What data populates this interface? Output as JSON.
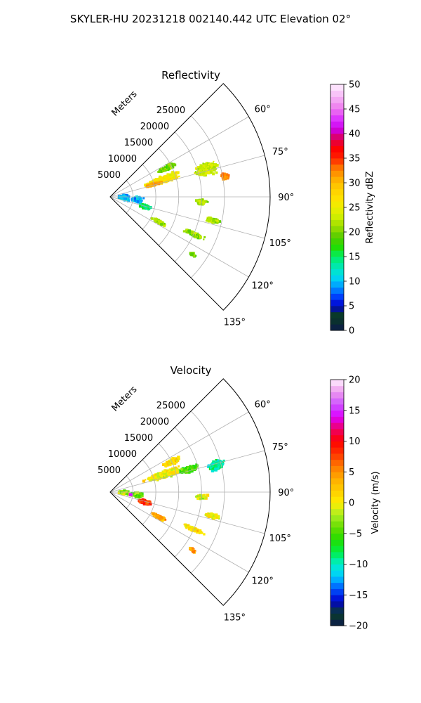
{
  "figure_title": "SKYLER-HU  20231218  002140.442 UTC Elevation 02°",
  "colors": {
    "grid": "#b0b0b0",
    "axis": "#000000"
  },
  "chart_data": [
    {
      "type": "heatmap",
      "subtype": "polar-sector-ppi",
      "title": "Reflectivity",
      "radial_axis_label": "Meters",
      "radial_ticks": [
        5000,
        10000,
        15000,
        20000,
        25000
      ],
      "radial_tick_labels": [
        "5000",
        "10000",
        "15000",
        "20000",
        "25000"
      ],
      "r_range": [
        0,
        35000
      ],
      "azimuth_range_deg": [
        45,
        135
      ],
      "azimuth_ticks_deg": [
        60,
        75,
        90,
        105,
        120,
        135
      ],
      "azimuth_tick_labels": [
        "60°",
        "75°",
        "90°",
        "105°",
        "120°",
        "135°"
      ],
      "grid": true,
      "colorbar": {
        "label": "Reflectivity dBZ",
        "range": [
          0,
          50
        ],
        "ticks": [
          0,
          5,
          10,
          15,
          20,
          25,
          30,
          35,
          40,
          45,
          50
        ],
        "tick_labels": [
          "0",
          "5",
          "10",
          "15",
          "20",
          "25",
          "30",
          "35",
          "40",
          "45",
          "50"
        ],
        "stops": [
          [
            0,
            "#0b1a4a"
          ],
          [
            3,
            "#0a3d1f"
          ],
          [
            5,
            "#0000cc"
          ],
          [
            7,
            "#0044ff"
          ],
          [
            9,
            "#00a0ff"
          ],
          [
            11,
            "#00ddee"
          ],
          [
            13,
            "#00e8b0"
          ],
          [
            15,
            "#00ee66"
          ],
          [
            17,
            "#22dd00"
          ],
          [
            19,
            "#55cc00"
          ],
          [
            21,
            "#99dd00"
          ],
          [
            23,
            "#ccee00"
          ],
          [
            25,
            "#eeee00"
          ],
          [
            27,
            "#ffe000"
          ],
          [
            29,
            "#ffcc00"
          ],
          [
            31,
            "#ffaa00"
          ],
          [
            33,
            "#ff7700"
          ],
          [
            35,
            "#ff2200"
          ],
          [
            37,
            "#ff0000"
          ],
          [
            39,
            "#dd0055"
          ],
          [
            41,
            "#cc00ee"
          ],
          [
            43,
            "#dd33ff"
          ],
          [
            45,
            "#ee77ee"
          ],
          [
            47,
            "#f4aaf4"
          ],
          [
            50,
            "#fff0ff"
          ]
        ]
      },
      "echoes": [
        {
          "r": 12000,
          "az": 72,
          "dr": 9000,
          "daz": 8,
          "v": 26,
          "n": 500
        },
        {
          "r": 10000,
          "az": 74,
          "dr": 4000,
          "daz": 3,
          "v": 31,
          "n": 150
        },
        {
          "r": 22000,
          "az": 74,
          "dr": 6000,
          "daz": 8,
          "v": 23,
          "n": 350
        },
        {
          "r": 25500,
          "az": 80,
          "dr": 2000,
          "daz": 4,
          "v": 33,
          "n": 70
        },
        {
          "r": 14000,
          "az": 63,
          "dr": 5000,
          "daz": 5,
          "v": 20,
          "n": 160
        },
        {
          "r": 3000,
          "az": 92,
          "dr": 3000,
          "daz": 25,
          "v": 10,
          "n": 180
        },
        {
          "r": 6000,
          "az": 96,
          "dr": 3000,
          "daz": 18,
          "v": 9,
          "n": 140
        },
        {
          "r": 8000,
          "az": 106,
          "dr": 3000,
          "daz": 8,
          "v": 15,
          "n": 180
        },
        {
          "r": 12000,
          "az": 117,
          "dr": 4000,
          "daz": 4,
          "v": 22,
          "n": 120
        },
        {
          "r": 20000,
          "az": 114,
          "dr": 6000,
          "daz": 3,
          "v": 21,
          "n": 120
        },
        {
          "r": 23000,
          "az": 103,
          "dr": 4000,
          "daz": 3,
          "v": 22,
          "n": 110
        },
        {
          "r": 20000,
          "az": 93,
          "dr": 3000,
          "daz": 4,
          "v": 22,
          "n": 80
        },
        {
          "r": 22000,
          "az": 125,
          "dr": 2000,
          "daz": 2,
          "v": 20,
          "n": 25
        }
      ]
    },
    {
      "type": "heatmap",
      "subtype": "polar-sector-ppi",
      "title": "Velocity",
      "radial_axis_label": "Meters",
      "radial_ticks": [
        5000,
        10000,
        15000,
        20000,
        25000
      ],
      "radial_tick_labels": [
        "5000",
        "10000",
        "15000",
        "20000",
        "25000"
      ],
      "r_range": [
        0,
        35000
      ],
      "azimuth_range_deg": [
        45,
        135
      ],
      "azimuth_ticks_deg": [
        60,
        75,
        90,
        105,
        120,
        135
      ],
      "azimuth_tick_labels": [
        "60°",
        "75°",
        "90°",
        "105°",
        "120°",
        "135°"
      ],
      "grid": true,
      "colorbar": {
        "label": "Velocity (m/s)",
        "range": [
          -20,
          20
        ],
        "ticks": [
          -20,
          -15,
          -10,
          -5,
          0,
          5,
          10,
          15,
          20
        ],
        "tick_labels": [
          "−20",
          "−15",
          "−10",
          "−5",
          "0",
          "5",
          "10",
          "15",
          "20"
        ],
        "stops": [
          [
            -20,
            "#0b1a4a"
          ],
          [
            -18,
            "#0a3d2a"
          ],
          [
            -16,
            "#0000cc"
          ],
          [
            -14,
            "#0055ff"
          ],
          [
            -12,
            "#00ccff"
          ],
          [
            -10,
            "#00eecc"
          ],
          [
            -8,
            "#00ee44"
          ],
          [
            -6,
            "#22dd00"
          ],
          [
            -4,
            "#66dd00"
          ],
          [
            -2,
            "#aaee22"
          ],
          [
            0,
            "#ffee00"
          ],
          [
            2,
            "#ffcc00"
          ],
          [
            4,
            "#ffaa00"
          ],
          [
            6,
            "#ff7700"
          ],
          [
            8,
            "#ff3300"
          ],
          [
            10,
            "#ff0000"
          ],
          [
            12,
            "#ee0066"
          ],
          [
            14,
            "#dd00ff"
          ],
          [
            16,
            "#cc55ff"
          ],
          [
            18,
            "#ee99ee"
          ],
          [
            20,
            "#fff0ff"
          ]
        ]
      },
      "echoes": [
        {
          "r": 12000,
          "az": 72,
          "dr": 9000,
          "daz": 8,
          "v": 0,
          "n": 450
        },
        {
          "r": 18000,
          "az": 74,
          "dr": 5000,
          "daz": 5,
          "v": -5,
          "n": 220
        },
        {
          "r": 24000,
          "az": 76,
          "dr": 4000,
          "daz": 6,
          "v": -9,
          "n": 250
        },
        {
          "r": 15000,
          "az": 64,
          "dr": 5000,
          "daz": 5,
          "v": 1,
          "n": 140
        },
        {
          "r": 3000,
          "az": 92,
          "dr": 3000,
          "daz": 20,
          "v": -2,
          "n": 100
        },
        {
          "r": 6000,
          "az": 96,
          "dr": 3000,
          "daz": 12,
          "v": -4,
          "n": 100
        },
        {
          "r": 8000,
          "az": 106,
          "dr": 3000,
          "daz": 8,
          "v": 8,
          "n": 180
        },
        {
          "r": 12000,
          "az": 117,
          "dr": 4000,
          "daz": 4,
          "v": 4,
          "n": 120
        },
        {
          "r": 20000,
          "az": 114,
          "dr": 6000,
          "daz": 3,
          "v": 1,
          "n": 120
        },
        {
          "r": 23000,
          "az": 103,
          "dr": 4000,
          "daz": 3,
          "v": 0,
          "n": 110
        },
        {
          "r": 20000,
          "az": 93,
          "dr": 3000,
          "daz": 4,
          "v": 0,
          "n": 80
        },
        {
          "r": 4500,
          "az": 97,
          "dr": 400,
          "daz": 2,
          "v": 14,
          "n": 10
        },
        {
          "r": 22000,
          "az": 125,
          "dr": 2000,
          "daz": 2,
          "v": 5,
          "n": 25
        }
      ]
    }
  ]
}
